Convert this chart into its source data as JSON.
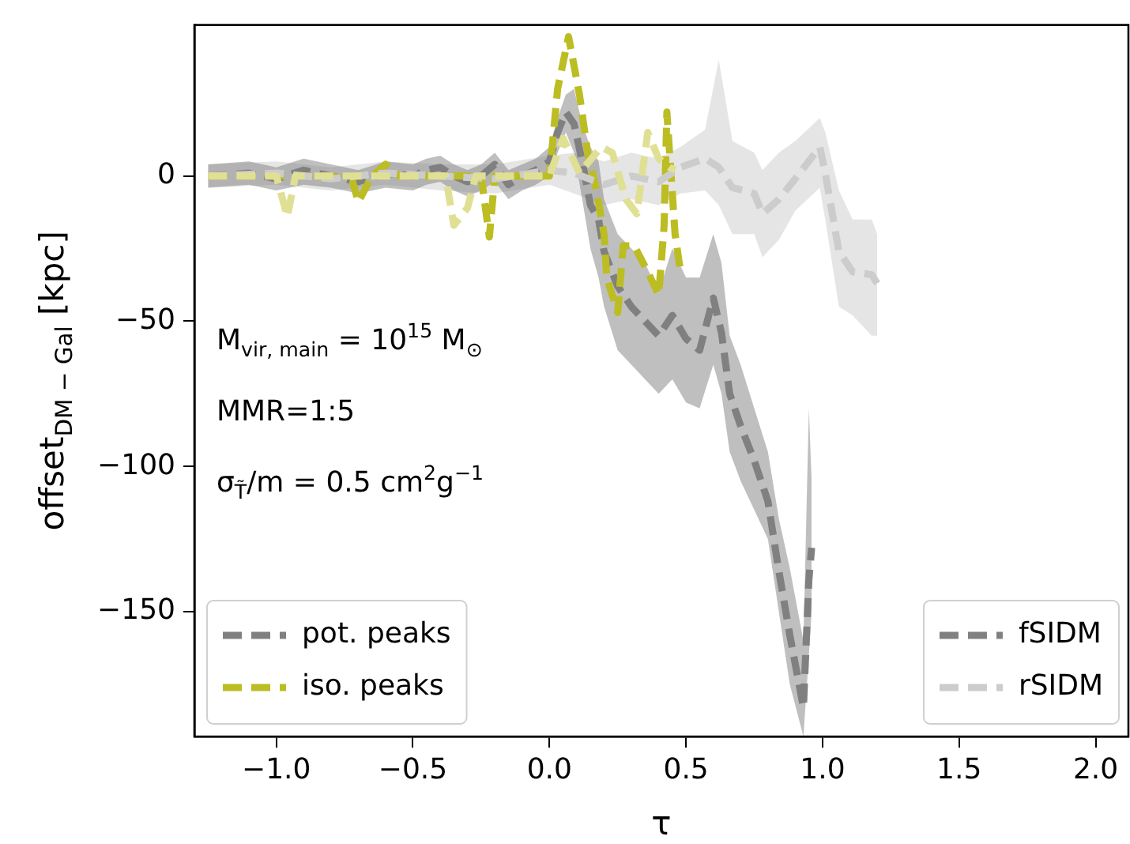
{
  "chart_data": {
    "type": "line",
    "xlabel": "τ",
    "ylabel": "offset$_{DM − Gal}$ [kpc]",
    "annotations": [
      "M$_{vir, main}$ = 10$^{15}$ M$_{⊙}$",
      "MMR=1:5",
      "σ$_{T̃}$/m = 0.5 cm$^{2}$g$^{−1}$"
    ],
    "xlim": [
      -1.3,
      2.12
    ],
    "ylim": [
      -193,
      52
    ],
    "xticks": [
      {
        "value": -1,
        "label": "−1.0"
      },
      {
        "value": -0.5,
        "label": "−0.5"
      },
      {
        "value": 0,
        "label": "0.0"
      },
      {
        "value": 0.5,
        "label": "0.5"
      },
      {
        "value": 1,
        "label": "1.0"
      },
      {
        "value": 1.5,
        "label": "1.5"
      },
      {
        "value": 2,
        "label": "2.0"
      }
    ],
    "yticks": [
      {
        "value": -150,
        "label": "−150"
      },
      {
        "value": -100,
        "label": "−100"
      },
      {
        "value": -50,
        "label": "−50"
      },
      0
    ],
    "grid": false,
    "legend": "bottom",
    "marker": "none",
    "line_style": "dashed",
    "series": [
      {
        "name": "pot. peaks",
        "color": "#808080",
        "x": [
          -1.25,
          -1.1,
          -1.0,
          -0.9,
          -0.8,
          -0.7,
          -0.6,
          -0.5,
          -0.45,
          -0.4,
          -0.35,
          -0.3,
          -0.25,
          -0.2,
          -0.15,
          -0.1,
          -0.05,
          0,
          0.03,
          0.06,
          0.09,
          0.12,
          0.15,
          0.18,
          0.2,
          0.25,
          0.3,
          0.35,
          0.4,
          0.45,
          0.5,
          0.55,
          0.6,
          0.63,
          0.66,
          0.7,
          0.75,
          0.8,
          0.84,
          0.88,
          0.93,
          0.95,
          0.96
        ],
        "values": [
          0,
          1,
          -1,
          2,
          0,
          -2,
          1,
          0,
          2,
          3,
          0,
          -2,
          0,
          4,
          -3,
          0,
          2,
          5,
          15,
          22,
          18,
          5,
          -10,
          -15,
          -26,
          -38,
          -45,
          -50,
          -55,
          -48,
          -56,
          -60,
          -42,
          -54,
          -75,
          -86,
          -98,
          -112,
          -136,
          -158,
          -183,
          -139,
          -128
        ],
        "lower": [
          -4,
          -3,
          -5,
          -3,
          -4,
          -6,
          -4,
          -5,
          -3,
          -2,
          -5,
          -7,
          -5,
          -2,
          -8,
          -5,
          -3,
          0,
          8,
          15,
          8,
          -8,
          -25,
          -35,
          -45,
          -60,
          -65,
          -70,
          -75,
          -70,
          -78,
          -80,
          -65,
          -75,
          -95,
          -105,
          -115,
          -125,
          -150,
          -175,
          -193,
          -165,
          -150
        ],
        "upper": [
          4,
          5,
          3,
          6,
          4,
          2,
          5,
          4,
          6,
          7,
          4,
          2,
          4,
          8,
          2,
          4,
          6,
          10,
          20,
          28,
          30,
          18,
          10,
          5,
          -8,
          -20,
          -25,
          -30,
          -40,
          -25,
          -35,
          -35,
          -20,
          -30,
          -55,
          -65,
          -80,
          -95,
          -118,
          -135,
          -160,
          -80,
          -105
        ]
      },
      {
        "name": "iso. peaks",
        "color": "#bcbd22",
        "x": [
          -1.25,
          -1.0,
          -0.8,
          -0.72,
          -0.7,
          -0.65,
          -0.6,
          -0.55,
          -0.4,
          -0.25,
          -0.22,
          -0.2,
          -0.1,
          0.0,
          0.03,
          0.07,
          0.11,
          0.14,
          0.17,
          0.2,
          0.21,
          0.25,
          0.27,
          0.31,
          0.36,
          0.4,
          0.42,
          0.43,
          0.46,
          0.48
        ],
        "values": [
          0,
          0,
          0,
          -2,
          -9,
          0,
          4,
          0,
          0,
          0,
          -21,
          0,
          0,
          0,
          30,
          48,
          28,
          8,
          -4,
          -20,
          -35,
          -47,
          -24,
          -24,
          -33,
          -41,
          -17,
          22,
          -20,
          -33
        ]
      },
      {
        "name": "fSIDM",
        "color": "#808080"
      },
      {
        "name": "rSIDM",
        "color": "#cccccc",
        "x": [
          -1.25,
          -1.0,
          -0.8,
          -0.6,
          -0.4,
          -0.2,
          0.0,
          0.09,
          0.2,
          0.3,
          0.4,
          0.48,
          0.57,
          0.62,
          0.67,
          0.75,
          0.78,
          0.84,
          0.9,
          0.99,
          1.01,
          1.06,
          1.11,
          1.18,
          1.2
        ],
        "values": [
          0,
          1,
          -1,
          1,
          0,
          -1,
          2,
          1,
          -3,
          0,
          -2,
          3,
          6,
          3,
          -4,
          -6,
          -13,
          -8,
          -1,
          10,
          1,
          -26,
          -33,
          -34,
          -37
        ],
        "lower": [
          -4,
          -3,
          -5,
          -3,
          -5,
          -6,
          -3,
          -6,
          -10,
          -8,
          -10,
          -6,
          -5,
          -10,
          -20,
          -20,
          -28,
          -22,
          -12,
          -4,
          -15,
          -45,
          -48,
          -55,
          -55
        ],
        "upper": [
          4,
          5,
          3,
          5,
          4,
          4,
          7,
          8,
          5,
          8,
          6,
          10,
          16,
          40,
          12,
          8,
          2,
          8,
          12,
          20,
          15,
          -5,
          -15,
          -15,
          -20
        ]
      },
      {
        "color": "#dfe094",
        "x": [
          -1.25,
          -1.0,
          -0.96,
          -0.93,
          -0.6,
          -0.38,
          -0.35,
          -0.3,
          -0.27,
          0.0,
          0.05,
          0.11,
          0.19,
          0.23,
          0.28,
          0.32,
          0.36,
          0.4,
          0.44,
          0.46
        ],
        "values": [
          0,
          0,
          -14,
          0,
          0,
          0,
          -17,
          -11,
          0,
          0,
          13,
          1,
          10,
          8,
          -8,
          -13,
          15,
          6,
          3,
          2
        ]
      }
    ]
  }
}
